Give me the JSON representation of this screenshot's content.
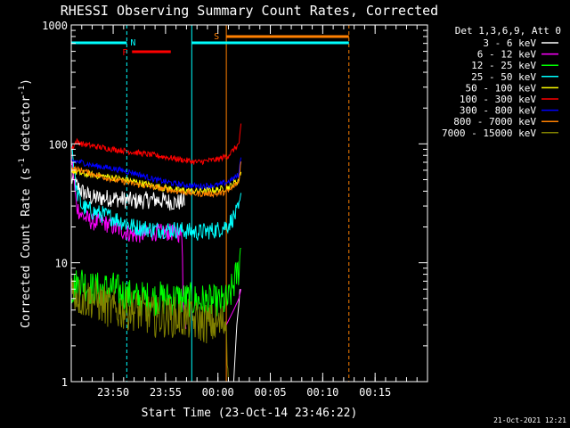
{
  "chart_data": {
    "type": "line",
    "title": "RHESSI Observing Summary Count Rates, Corrected",
    "xlabel": "Start Time (23-Oct-14 23:46:22)",
    "ylabel": "Corrected Count Rate (s^-1 detector^-1)",
    "ylabel_parts": {
      "main": "Corrected Count Rate (s",
      "sup1": "-1",
      "mid": " detector",
      "sup2": "-1",
      "end": ")"
    },
    "yscale": "log",
    "ylim": [
      1,
      1000
    ],
    "xlim_minutes_from_2346": [
      0,
      34
    ],
    "xtick_labels": [
      "23:50",
      "23:55",
      "00:00",
      "00:05",
      "00:10",
      "00:15"
    ],
    "xtick_minutes": [
      4,
      9,
      14,
      19,
      24,
      29
    ],
    "ytick_labels": [
      "1",
      "10",
      "100",
      "1000"
    ],
    "legend_header": "Det 1,3,6,9, Att 0",
    "legend_placement": "right",
    "timestamp": "21-Oct-2021 12:21",
    "annotations": {
      "night": {
        "label": "N",
        "color": "#00ffff",
        "start_min": 0,
        "end_min": 5.3
      },
      "night2": {
        "color": "#00ffff",
        "start_min": 11.5,
        "end_min": 26.5
      },
      "flare": {
        "label": "F",
        "color": "#ff0000",
        "start_min": 5.8,
        "end_min": 9.5
      },
      "saa": {
        "label": "S",
        "color": "#ff8000",
        "start_min": 14.8,
        "end_min": 26.5
      },
      "vlines": [
        {
          "minute": 0,
          "color": "#00ffff",
          "style": "solid"
        },
        {
          "minute": 5.3,
          "color": "#00ffff",
          "style": "dashed"
        },
        {
          "minute": 11.5,
          "color": "#00ffff",
          "style": "solid"
        },
        {
          "minute": 14.8,
          "color": "#ff8000",
          "style": "solid"
        },
        {
          "minute": 26.5,
          "color": "#ff8000",
          "style": "dashed"
        }
      ]
    },
    "series": [
      {
        "name": "3 - 6 keV",
        "color": "#ffffff",
        "x": [
          0,
          1,
          2,
          4,
          6,
          8,
          10,
          10.8
        ],
        "y": [
          50,
          40,
          35,
          35,
          33,
          34,
          32,
          33
        ],
        "late_x": [
          15.5,
          15.8,
          16,
          16.1
        ],
        "late_y": [
          1,
          3,
          4.5,
          6
        ],
        "noise": 0.15
      },
      {
        "name": "6 - 12 keV",
        "color": "#ff00ff",
        "x": [
          0,
          0.5,
          1,
          2,
          3,
          4,
          6,
          8,
          10,
          10.6,
          10.7,
          11
        ],
        "y": [
          80,
          30,
          25,
          22,
          22,
          20,
          17,
          18,
          18,
          17,
          4,
          3
        ],
        "late_x": [
          14.8,
          15.5,
          16,
          16.2
        ],
        "late_y": [
          3,
          4,
          5,
          6
        ],
        "noise": 0.15
      },
      {
        "name": "12 - 25 keV",
        "color": "#00ff00",
        "x": [
          0,
          1,
          2,
          4,
          6,
          8,
          10,
          12,
          14,
          15,
          16,
          16.2
        ],
        "y": [
          6,
          7,
          6,
          6,
          5,
          5,
          5,
          4.8,
          4.6,
          4.8,
          9,
          14
        ],
        "noise": 0.3
      },
      {
        "name": "25 - 50 keV",
        "color": "#00ffff",
        "x": [
          0,
          0.5,
          1,
          2,
          4,
          6,
          8,
          10,
          12,
          14,
          15,
          16,
          16.2
        ],
        "y": [
          110,
          40,
          30,
          27,
          24,
          20,
          19,
          19,
          18,
          19,
          21,
          28,
          35
        ],
        "noise": 0.15
      },
      {
        "name": "50 - 100 keV",
        "color": "#ffff00",
        "x": [
          0,
          1,
          2,
          4,
          6,
          8,
          10,
          12,
          14,
          15,
          16,
          16.2
        ],
        "y": [
          60,
          56,
          55,
          52,
          48,
          44,
          41,
          40,
          41,
          43,
          50,
          60
        ],
        "noise": 0.06
      },
      {
        "name": "100 - 300 keV",
        "color": "#ff0000",
        "x": [
          0,
          0.5,
          1,
          2,
          4,
          6,
          8,
          10,
          12,
          14,
          15,
          16,
          16.2
        ],
        "y": [
          90,
          105,
          100,
          96,
          90,
          85,
          80,
          75,
          70,
          74,
          80,
          100,
          140
        ],
        "noise": 0.05
      },
      {
        "name": "300 - 800 keV",
        "color": "#0000ff",
        "x": [
          0,
          1,
          2,
          4,
          6,
          8,
          10,
          12,
          14,
          15,
          16,
          16.2
        ],
        "y": [
          72,
          70,
          66,
          62,
          57,
          50,
          46,
          44,
          45,
          48,
          55,
          80
        ],
        "noise": 0.05
      },
      {
        "name": "800 - 7000 keV",
        "color": "#ff8000",
        "x": [
          0,
          1,
          2,
          4,
          6,
          8,
          10,
          12,
          14,
          15,
          16,
          16.2
        ],
        "y": [
          62,
          60,
          56,
          50,
          46,
          43,
          40,
          38,
          38,
          40,
          48,
          75
        ],
        "noise": 0.05
      },
      {
        "name": "7000 - 15000 keV",
        "color": "#808000",
        "x": [
          0,
          1,
          2,
          4,
          6,
          8,
          10,
          12,
          14,
          14.8,
          15.0
        ],
        "y": [
          6,
          5,
          5,
          4,
          4,
          3.5,
          3.5,
          3.2,
          3,
          3.2,
          1
        ],
        "noise": 0.35
      }
    ]
  }
}
